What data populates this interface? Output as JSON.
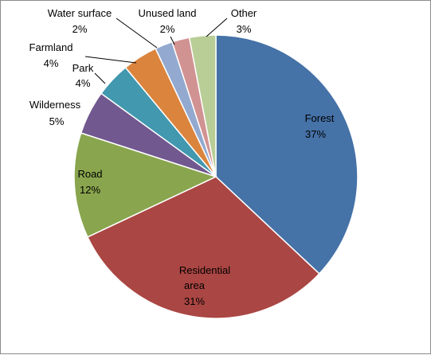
{
  "chart_data": {
    "type": "pie",
    "title": "",
    "start_angle_deg": 0,
    "direction": "clockwise",
    "slices": [
      {
        "label": "Forest",
        "percent_label": "37%",
        "value": 37,
        "color": "#4572A7"
      },
      {
        "label": "Residential area",
        "percent_label": "31%",
        "value": 31,
        "color": "#AA4643"
      },
      {
        "label": "Road",
        "percent_label": "12%",
        "value": 12,
        "color": "#89A54E"
      },
      {
        "label": "Wilderness",
        "percent_label": "5%",
        "value": 5,
        "color": "#71588F"
      },
      {
        "label": "Park",
        "percent_label": "4%",
        "value": 4,
        "color": "#4198AF"
      },
      {
        "label": "Farmland",
        "percent_label": "4%",
        "value": 4,
        "color": "#DB843D"
      },
      {
        "label": "Water surface",
        "percent_label": "2%",
        "value": 2,
        "color": "#93A9CF"
      },
      {
        "label": "Unused land",
        "percent_label": "2%",
        "value": 2,
        "color": "#D19392"
      },
      {
        "label": "Other",
        "percent_label": "3%",
        "value": 3,
        "color": "#B9CD96"
      }
    ]
  }
}
